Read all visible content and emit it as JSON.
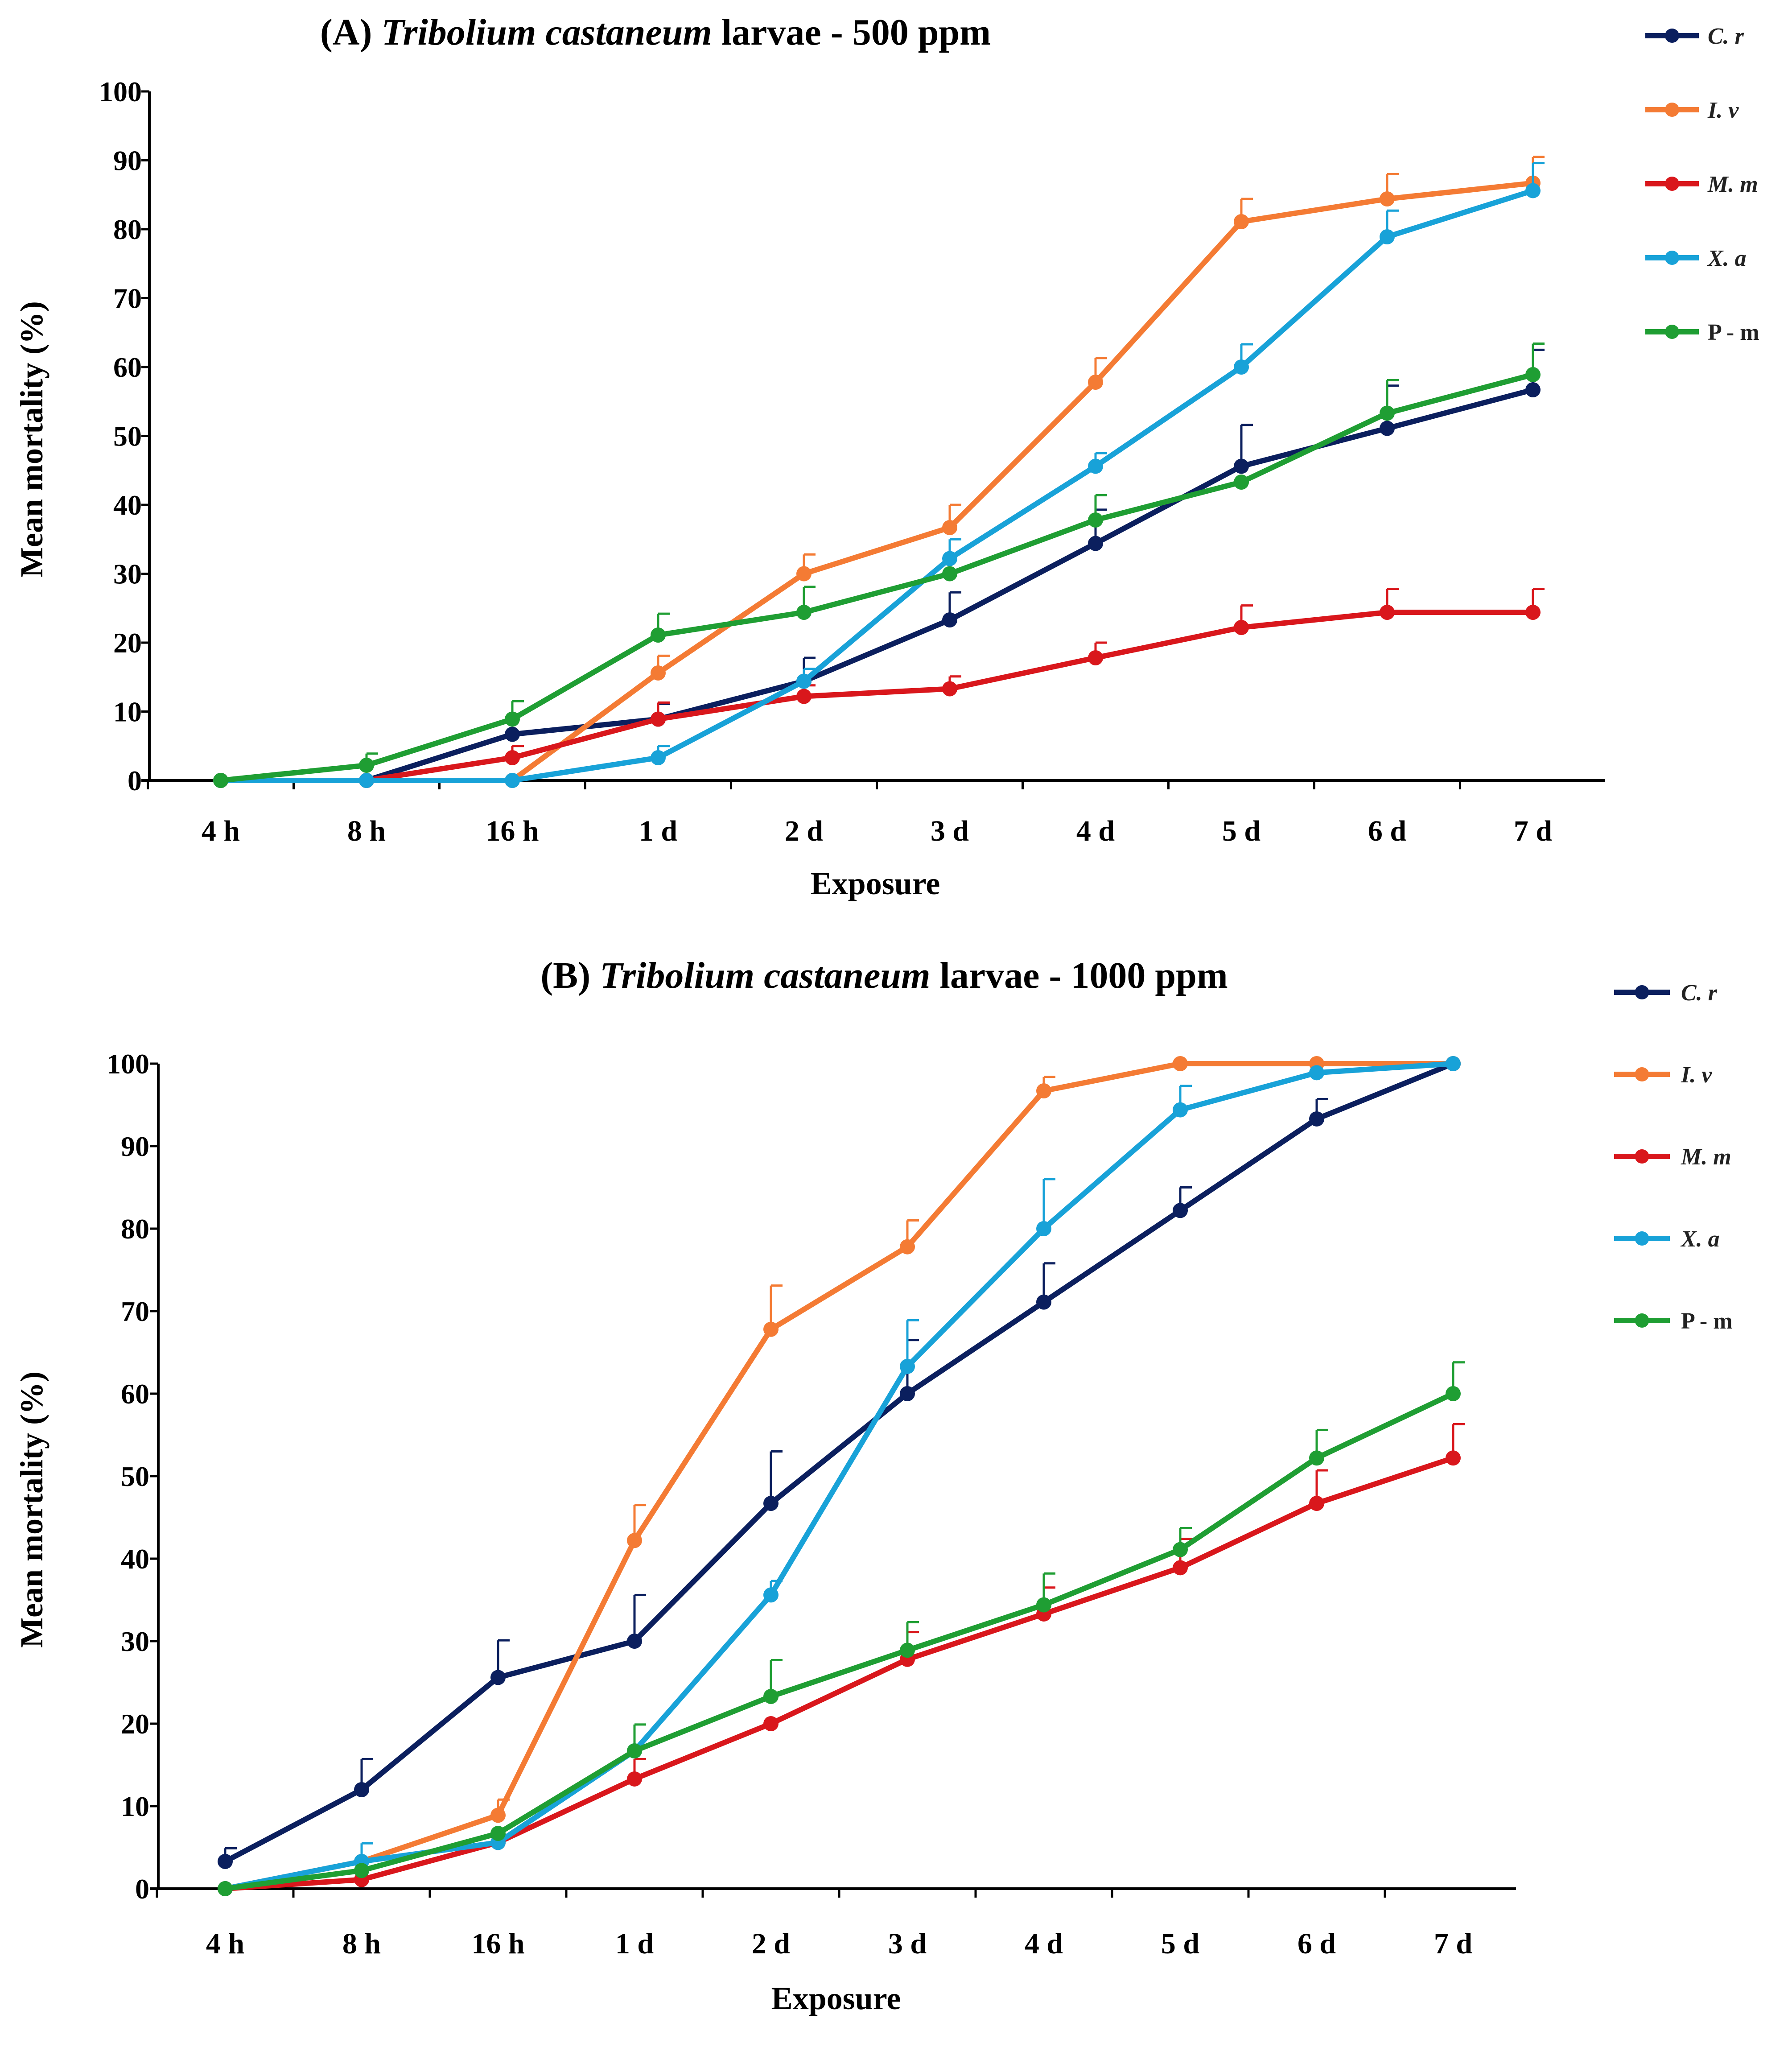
{
  "chart_data": [
    {
      "type": "line",
      "title_prefix": "(A)",
      "title_species": "Tribolium castaneum",
      "title_suffix": "larvae - 500 ppm",
      "xlabel": "Exposure",
      "ylabel": "Mean mortality (%)",
      "ylim": [
        0,
        100
      ],
      "yticks": [
        "0",
        "10",
        "20",
        "30",
        "40",
        "50",
        "60",
        "70",
        "80",
        "90",
        "100"
      ],
      "categories": [
        "4 h",
        "8 h",
        "16 h",
        "1 d",
        "2 d",
        "3 d",
        "4 d",
        "5 d",
        "6 d",
        "7 d"
      ],
      "legend_position": "right",
      "series": [
        {
          "name": "C. r",
          "color": "#0b1f5e",
          "italic": true,
          "values": [
            0,
            0,
            6.7,
            8.9,
            14.4,
            23.3,
            34.4,
            45.6,
            51.1,
            56.7
          ],
          "errors": [
            0,
            0,
            0,
            2.2,
            3.4,
            4.0,
            4.9,
            6.0,
            6.2,
            5.8
          ]
        },
        {
          "name": "I. v",
          "color": "#f47b34",
          "italic": true,
          "values": [
            0,
            0,
            0,
            15.6,
            30.0,
            36.7,
            57.8,
            81.1,
            84.4,
            86.7
          ],
          "errors": [
            0,
            0,
            0,
            2.5,
            2.8,
            3.3,
            3.5,
            3.3,
            3.6,
            3.8
          ]
        },
        {
          "name": "M. m",
          "color": "#d9171c",
          "italic": true,
          "values": [
            0,
            0,
            3.3,
            8.9,
            12.2,
            13.3,
            17.8,
            22.2,
            24.4,
            24.4
          ],
          "errors": [
            0,
            0,
            1.7,
            2.4,
            1.6,
            1.8,
            2.2,
            3.2,
            3.4,
            3.4
          ]
        },
        {
          "name": "X. a",
          "color": "#18a2d8",
          "italic": true,
          "values": [
            0,
            0,
            0,
            3.3,
            14.4,
            32.2,
            45.6,
            60.0,
            78.9,
            85.6
          ],
          "errors": [
            0,
            0,
            0,
            1.7,
            1.8,
            2.8,
            1.9,
            3.3,
            3.8,
            4.0
          ]
        },
        {
          "name": "P - m",
          "color": "#1f9e33",
          "italic": false,
          "values": [
            0,
            2.2,
            8.9,
            21.1,
            24.4,
            30.0,
            37.8,
            43.3,
            53.3,
            58.9
          ],
          "errors": [
            0,
            1.7,
            2.6,
            3.1,
            3.7,
            0,
            3.6,
            0,
            4.8,
            4.5
          ]
        }
      ]
    },
    {
      "type": "line",
      "title_prefix": "(B)",
      "title_species": "Tribolium castaneum",
      "title_suffix": "larvae - 1000 ppm",
      "xlabel": "Exposure",
      "ylabel": "Mean mortality (%)",
      "ylim": [
        0,
        100
      ],
      "yticks": [
        "0",
        "10",
        "20",
        "30",
        "40",
        "50",
        "60",
        "70",
        "80",
        "90",
        "100"
      ],
      "categories": [
        "4 h",
        "8 h",
        "16 h",
        "1 d",
        "2 d",
        "3 d",
        "4 d",
        "5 d",
        "6 d",
        "7 d"
      ],
      "legend_position": "right",
      "series": [
        {
          "name": "C. r",
          "color": "#0b1f5e",
          "italic": true,
          "values": [
            3.3,
            12.0,
            25.6,
            30.0,
            46.7,
            60.0,
            71.1,
            82.2,
            93.3,
            100
          ],
          "errors": [
            1.6,
            3.7,
            4.5,
            5.6,
            6.3,
            6.5,
            4.7,
            2.8,
            2.4,
            0
          ]
        },
        {
          "name": "I. v",
          "color": "#f47b34",
          "italic": true,
          "values": [
            0,
            3.3,
            8.9,
            42.2,
            67.8,
            77.8,
            96.7,
            100,
            100,
            100
          ],
          "errors": [
            0,
            0,
            1.9,
            4.3,
            5.3,
            3.2,
            1.7,
            0,
            0,
            0
          ]
        },
        {
          "name": "M. m",
          "color": "#d9171c",
          "italic": true,
          "values": [
            0,
            1.1,
            5.6,
            13.3,
            20.0,
            27.8,
            33.3,
            38.9,
            46.7,
            52.2
          ],
          "errors": [
            0,
            0,
            0,
            2.4,
            0,
            3.3,
            3.2,
            3.5,
            4.0,
            4.1
          ]
        },
        {
          "name": "X. a",
          "color": "#18a2d8",
          "italic": true,
          "values": [
            0,
            3.3,
            5.6,
            16.7,
            35.6,
            63.3,
            80.0,
            94.4,
            98.9,
            100
          ],
          "errors": [
            0,
            2.2,
            0,
            0,
            1.7,
            5.6,
            6.0,
            2.9,
            0,
            0
          ]
        },
        {
          "name": "P - m",
          "color": "#1f9e33",
          "italic": false,
          "values": [
            0,
            2.2,
            6.7,
            16.7,
            23.3,
            28.9,
            34.4,
            41.1,
            52.2,
            60.0
          ],
          "errors": [
            0,
            0,
            0,
            3.2,
            4.4,
            3.4,
            3.8,
            2.6,
            3.4,
            3.8
          ]
        }
      ]
    }
  ]
}
